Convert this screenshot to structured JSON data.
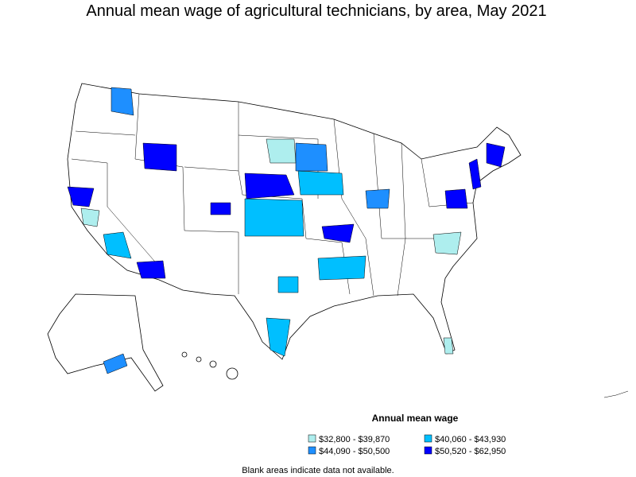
{
  "title": "Annual mean wage of agricultural technicians, by area, May 2021",
  "legend": {
    "title": "Annual mean wage",
    "items": [
      {
        "label": "$32,800 - $39,870",
        "color": "#aeeeee"
      },
      {
        "label": "$40,060 - $43,930",
        "color": "#00bfff"
      },
      {
        "label": "$44,090 - $50,500",
        "color": "#1e8fff"
      },
      {
        "label": "$50,520 - $62,950",
        "color": "#0000ff"
      }
    ]
  },
  "note": "Blank areas indicate data not available."
}
